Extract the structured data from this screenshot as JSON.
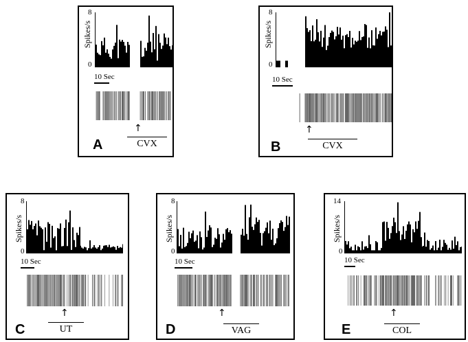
{
  "figure": {
    "panels": [
      {
        "id": "A",
        "label": "A",
        "ymax": "8",
        "ymin": "0",
        "ylabel": "Spikes/s",
        "scale": "10 Sec",
        "stimulus": "CVX",
        "arrow": "↑"
      },
      {
        "id": "B",
        "label": "B",
        "ymax": "8",
        "ymin": "0",
        "ylabel": "Spikes/s",
        "scale": "10 Sec",
        "stimulus": "CVX",
        "arrow": "↑"
      },
      {
        "id": "C",
        "label": "C",
        "ymax": "8",
        "ymin": "0",
        "ylabel": "Spikes/s",
        "scale": "10 Sec",
        "stimulus": "UT",
        "arrow": "↑"
      },
      {
        "id": "D",
        "label": "D",
        "ymax": "8",
        "ymin": "0",
        "ylabel": "Spikes/s",
        "scale": "10 Sec",
        "stimulus": "VAG",
        "arrow": "↑"
      },
      {
        "id": "E",
        "label": "E",
        "ymax": "14",
        "ymin": "0",
        "ylabel": "Spikes/s",
        "scale": "10 Sec",
        "stimulus": "COL",
        "arrow": "↑"
      }
    ]
  },
  "chart_data": [
    {
      "type": "bar",
      "panel": "A",
      "ylabel": "Spikes/s",
      "ylim": [
        0,
        8
      ],
      "stimulus": "CVX",
      "segments": 2
    },
    {
      "type": "bar",
      "panel": "B",
      "ylabel": "Spikes/s",
      "ylim": [
        0,
        8
      ],
      "stimulus": "CVX",
      "segments": 2
    },
    {
      "type": "bar",
      "panel": "C",
      "ylabel": "Spikes/s",
      "ylim": [
        0,
        8
      ],
      "stimulus": "UT",
      "segments": 1
    },
    {
      "type": "bar",
      "panel": "D",
      "ylabel": "Spikes/s",
      "ylim": [
        0,
        8
      ],
      "stimulus": "VAG",
      "segments": 2
    },
    {
      "type": "bar",
      "panel": "E",
      "ylabel": "Spikes/s",
      "ylim": [
        0,
        14
      ],
      "stimulus": "COL",
      "segments": 1
    }
  ]
}
